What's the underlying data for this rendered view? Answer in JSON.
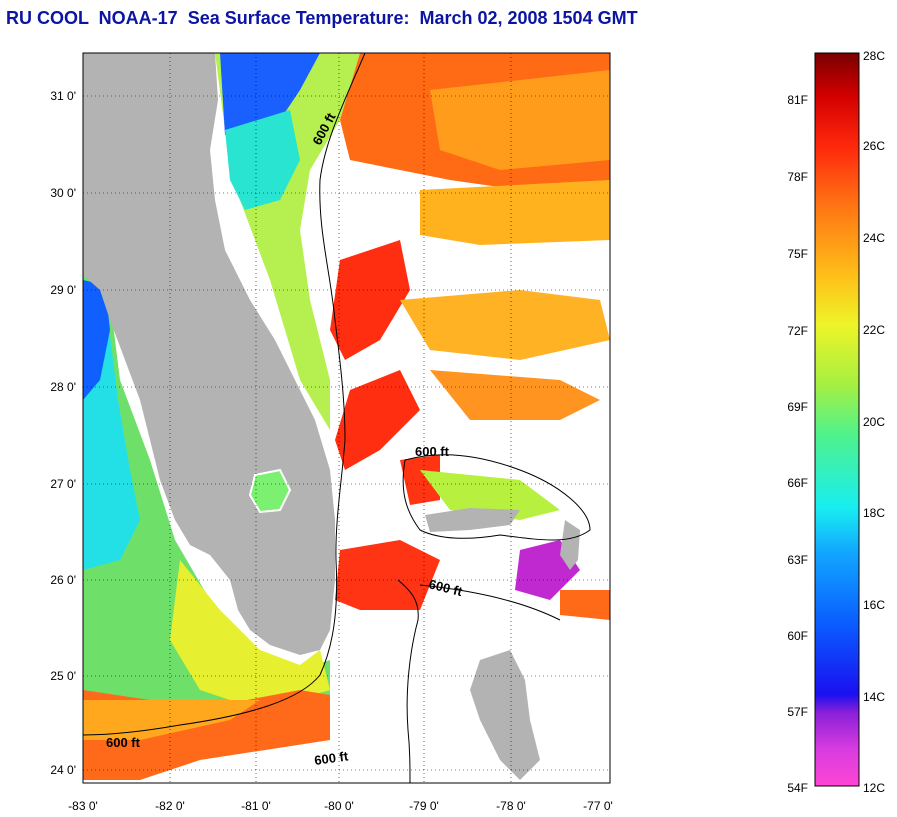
{
  "title": "RU COOL  NOAA-17  Sea Surface Temperature:  March 02, 2008 1504 GMT",
  "map": {
    "lat_labels": [
      "31 0'",
      "30 0'",
      "29 0'",
      "28 0'",
      "27 0'",
      "26 0'",
      "25 0'",
      "24 0'"
    ],
    "lon_labels": [
      "-83 0'",
      "-82 0'",
      "-81 0'",
      "-80 0'",
      "-79 0'",
      "-78 0'",
      "-77 0'"
    ],
    "contour_labels": [
      "600 ft",
      "600 ft",
      "600 ft",
      "600 ft",
      "600 ft"
    ],
    "colors": {
      "land": "#b3b3b3",
      "cloud": "#ffffff",
      "warm": "#ff3a12",
      "orange": "#ff8c1a",
      "yellow": "#f5f020",
      "green": "#7ee85a",
      "cyan": "#18e6ef",
      "blue": "#0a5cff"
    }
  },
  "colorbar": {
    "fahrenheit": [
      "81F",
      "78F",
      "75F",
      "72F",
      "69F",
      "66F",
      "63F",
      "60F",
      "57F",
      "54F"
    ],
    "celsius": [
      "28C",
      "26C",
      "24C",
      "22C",
      "20C",
      "18C",
      "16C",
      "14C",
      "12C"
    ],
    "gradient_stops": [
      "#ff45d4",
      "#8a20d8",
      "#1a10f0",
      "#0a5cff",
      "#12c4ff",
      "#18eef0",
      "#50f28a",
      "#a8f040",
      "#eef428",
      "#ffbc18",
      "#ff7614",
      "#ff2a0c",
      "#d40000",
      "#7a0000"
    ]
  }
}
